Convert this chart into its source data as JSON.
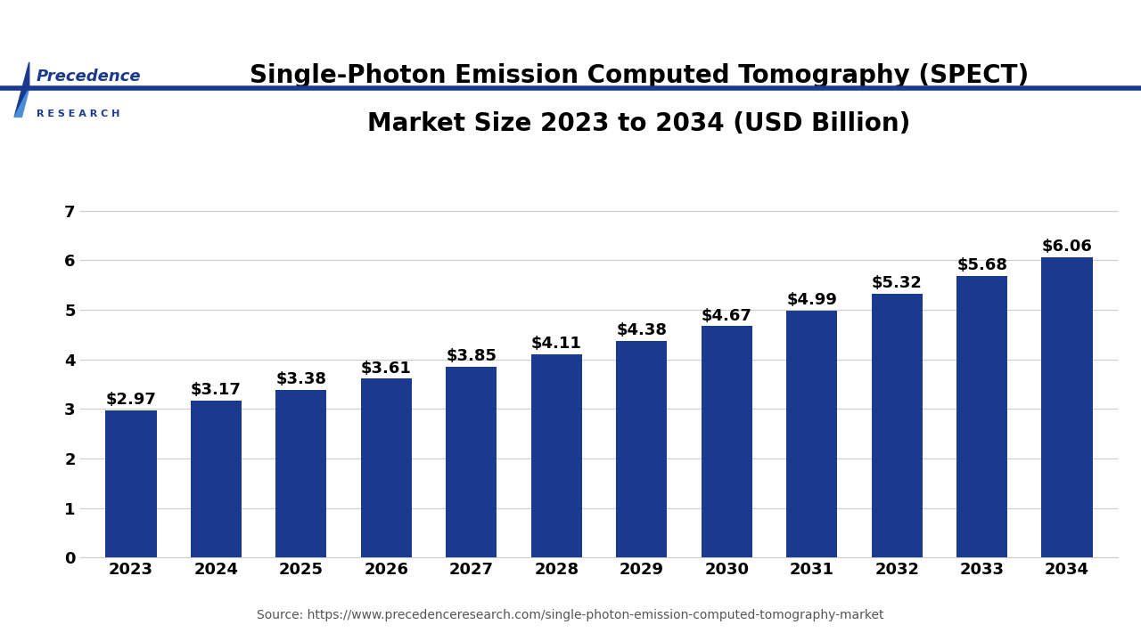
{
  "years": [
    "2023",
    "2024",
    "2025",
    "2026",
    "2027",
    "2028",
    "2029",
    "2030",
    "2031",
    "2032",
    "2033",
    "2034"
  ],
  "values": [
    2.97,
    3.17,
    3.38,
    3.61,
    3.85,
    4.11,
    4.38,
    4.67,
    4.99,
    5.32,
    5.68,
    6.06
  ],
  "labels": [
    "$2.97",
    "$3.17",
    "$3.38",
    "$3.61",
    "$3.85",
    "$4.11",
    "$4.38",
    "$4.67",
    "$4.99",
    "$5.32",
    "$5.68",
    "$6.06"
  ],
  "bar_color": "#1a3a8f",
  "background_color": "#ffffff",
  "title_line1": "Single-Photon Emission Computed Tomography (SPECT)",
  "title_line2": "Market Size 2023 to 2034 (USD Billion)",
  "title_fontsize": 20,
  "title_color": "#000000",
  "ylim": [
    0,
    7.5
  ],
  "yticks": [
    0,
    1,
    2,
    3,
    4,
    5,
    6,
    7
  ],
  "source_text": "Source: https://www.precedenceresearch.com/single-photon-emission-computed-tomography-market",
  "source_fontsize": 10,
  "bar_label_fontsize": 13,
  "tick_fontsize": 13,
  "grid_color": "#cccccc",
  "header_line_color": "#1a3a8f",
  "logo_color": "#1a3a8f",
  "logo_color_light": "#4a90d9"
}
